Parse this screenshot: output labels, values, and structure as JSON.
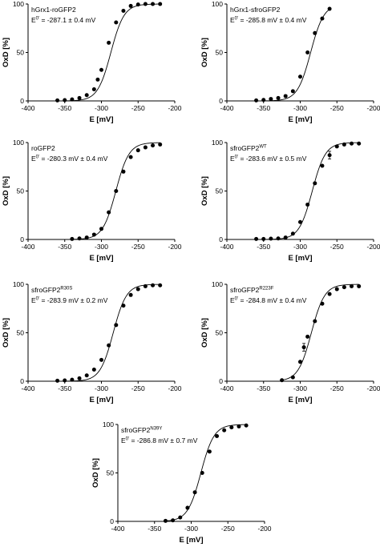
{
  "chart_data": [
    {
      "type": "scatter",
      "title": "hGrx1-roGFP2",
      "annotation": {
        "prefix": "E",
        "superscript": "0'",
        "text": " = -287.1 ± 0.4 mV"
      },
      "xlabel": "E [mV]",
      "ylabel": "OxD [%]",
      "xlim": [
        -400,
        -200
      ],
      "ylim": [
        0,
        100
      ],
      "xticks": [
        -400,
        -350,
        -300,
        -250,
        -200
      ],
      "yticks": [
        0,
        50,
        100
      ],
      "grid": false,
      "midpoint": -287.1,
      "points": [
        {
          "x": -360,
          "y": 0.5
        },
        {
          "x": -350,
          "y": 0.8
        },
        {
          "x": -340,
          "y": 1.5
        },
        {
          "x": -330,
          "y": 3
        },
        {
          "x": -320,
          "y": 6
        },
        {
          "x": -310,
          "y": 12
        },
        {
          "x": -305,
          "y": 22
        },
        {
          "x": -300,
          "y": 32
        },
        {
          "x": -290,
          "y": 60
        },
        {
          "x": -280,
          "y": 81
        },
        {
          "x": -270,
          "y": 93
        },
        {
          "x": -260,
          "y": 98
        },
        {
          "x": -250,
          "y": 99.5
        },
        {
          "x": -240,
          "y": 100
        },
        {
          "x": -230,
          "y": 100
        },
        {
          "x": -220,
          "y": 100
        }
      ]
    },
    {
      "type": "scatter",
      "title": "hGrx1-sfroGFP2",
      "annotation": {
        "prefix": "E",
        "superscript": "0'",
        "text": " = -285.8 mV ± 0.4 mV"
      },
      "xlabel": "E [mV]",
      "ylabel": "OxD [%]",
      "xlim": [
        -400,
        -200
      ],
      "ylim": [
        0,
        100
      ],
      "xticks": [
        -400,
        -350,
        -300,
        -250,
        -200
      ],
      "yticks": [
        0,
        50,
        100
      ],
      "grid": false,
      "midpoint": -285.8,
      "points": [
        {
          "x": -360,
          "y": 0.5
        },
        {
          "x": -350,
          "y": 1
        },
        {
          "x": -340,
          "y": 2
        },
        {
          "x": -330,
          "y": 3
        },
        {
          "x": -320,
          "y": 5
        },
        {
          "x": -310,
          "y": 10
        },
        {
          "x": -300,
          "y": 25
        },
        {
          "x": -290,
          "y": 50
        },
        {
          "x": -280,
          "y": 70
        },
        {
          "x": -270,
          "y": 85
        },
        {
          "x": -260,
          "y": 95
        }
      ]
    },
    {
      "type": "scatter",
      "title": "roGFP2",
      "annotation": {
        "prefix": "E",
        "superscript": "0'",
        "text": " = -280.3 mV ± 0.4 mV"
      },
      "xlabel": "E [mV]",
      "ylabel": "OxD [%]",
      "xlim": [
        -400,
        -200
      ],
      "ylim": [
        0,
        100
      ],
      "xticks": [
        -400,
        -350,
        -300,
        -250,
        -200
      ],
      "yticks": [
        0,
        50,
        100
      ],
      "grid": false,
      "midpoint": -280.3,
      "points": [
        {
          "x": -340,
          "y": 0.5
        },
        {
          "x": -330,
          "y": 1
        },
        {
          "x": -320,
          "y": 2
        },
        {
          "x": -310,
          "y": 5
        },
        {
          "x": -300,
          "y": 11
        },
        {
          "x": -290,
          "y": 28
        },
        {
          "x": -280,
          "y": 50
        },
        {
          "x": -270,
          "y": 70
        },
        {
          "x": -260,
          "y": 85
        },
        {
          "x": -250,
          "y": 92
        },
        {
          "x": -240,
          "y": 95
        },
        {
          "x": -230,
          "y": 97
        },
        {
          "x": -220,
          "y": 98
        }
      ]
    },
    {
      "type": "scatter",
      "title": "sfroGFP2",
      "title_superscript": "WT",
      "annotation": {
        "prefix": "E",
        "superscript": "0'",
        "text": " = -283.6 mV ± 0.5 mV"
      },
      "xlabel": "E [mV]",
      "ylabel": "OxD [%]",
      "xlim": [
        -400,
        -200
      ],
      "ylim": [
        0,
        100
      ],
      "xticks": [
        -400,
        -350,
        -300,
        -250,
        -200
      ],
      "yticks": [
        0,
        50,
        100
      ],
      "grid": false,
      "midpoint": -283.6,
      "points": [
        {
          "x": -360,
          "y": 0.5
        },
        {
          "x": -350,
          "y": 0.5
        },
        {
          "x": -340,
          "y": 0.8
        },
        {
          "x": -330,
          "y": 1
        },
        {
          "x": -320,
          "y": 2
        },
        {
          "x": -310,
          "y": 6
        },
        {
          "x": -300,
          "y": 18
        },
        {
          "x": -290,
          "y": 36
        },
        {
          "x": -280,
          "y": 58
        },
        {
          "x": -270,
          "y": 76
        },
        {
          "x": -260,
          "y": 87,
          "err": 4
        },
        {
          "x": -250,
          "y": 96
        },
        {
          "x": -240,
          "y": 98
        },
        {
          "x": -230,
          "y": 99
        },
        {
          "x": -220,
          "y": 99
        }
      ]
    },
    {
      "type": "scatter",
      "title": "sfroGFP2",
      "title_superscript": "R30S",
      "annotation": {
        "prefix": "E",
        "superscript": "0'",
        "text": " = -283.9 mV ± 0.2 mV"
      },
      "xlabel": "E [mV]",
      "ylabel": "OxD [%]",
      "xlim": [
        -400,
        -200
      ],
      "ylim": [
        0,
        100
      ],
      "xticks": [
        -400,
        -350,
        -300,
        -250,
        -200
      ],
      "yticks": [
        0,
        50,
        100
      ],
      "grid": false,
      "midpoint": -283.9,
      "points": [
        {
          "x": -360,
          "y": 0.5
        },
        {
          "x": -350,
          "y": 0.8
        },
        {
          "x": -340,
          "y": 1.5
        },
        {
          "x": -330,
          "y": 3
        },
        {
          "x": -320,
          "y": 6
        },
        {
          "x": -310,
          "y": 12
        },
        {
          "x": -300,
          "y": 22
        },
        {
          "x": -290,
          "y": 37
        },
        {
          "x": -280,
          "y": 58
        },
        {
          "x": -270,
          "y": 78
        },
        {
          "x": -260,
          "y": 89
        },
        {
          "x": -250,
          "y": 95
        },
        {
          "x": -240,
          "y": 98
        },
        {
          "x": -230,
          "y": 99
        },
        {
          "x": -220,
          "y": 99
        }
      ]
    },
    {
      "type": "scatter",
      "title": "sfroGFP2",
      "title_superscript": "R223F",
      "annotation": {
        "prefix": "E",
        "superscript": "0'",
        "text": " = -284.8 mV ± 0.4 mV"
      },
      "xlabel": "E [mV]",
      "ylabel": "OxD [%]",
      "xlim": [
        -400,
        -200
      ],
      "ylim": [
        0,
        100
      ],
      "xticks": [
        -400,
        -350,
        -300,
        -250,
        -200
      ],
      "yticks": [
        0,
        50,
        100
      ],
      "grid": false,
      "midpoint": -284.8,
      "points": [
        {
          "x": -325,
          "y": 1
        },
        {
          "x": -310,
          "y": 4
        },
        {
          "x": -300,
          "y": 20
        },
        {
          "x": -295,
          "y": 35,
          "err": 4
        },
        {
          "x": -290,
          "y": 46
        },
        {
          "x": -280,
          "y": 62
        },
        {
          "x": -270,
          "y": 80
        },
        {
          "x": -260,
          "y": 90
        },
        {
          "x": -250,
          "y": 95
        },
        {
          "x": -240,
          "y": 97
        },
        {
          "x": -230,
          "y": 98
        },
        {
          "x": -220,
          "y": 98
        }
      ]
    },
    {
      "type": "scatter",
      "title": "sfroGFP2",
      "title_superscript": "N39Y",
      "annotation": {
        "prefix": "E",
        "superscript": "0'",
        "text": " = -286.8 mV ± 0.7 mV"
      },
      "xlabel": "E [mV]",
      "ylabel": "OxD [%]",
      "xlim": [
        -400,
        -200
      ],
      "ylim": [
        0,
        100
      ],
      "xticks": [
        -400,
        -350,
        -300,
        -250,
        -200
      ],
      "yticks": [
        0,
        50,
        100
      ],
      "grid": false,
      "midpoint": -286.8,
      "points": [
        {
          "x": -335,
          "y": 0.5
        },
        {
          "x": -325,
          "y": 1
        },
        {
          "x": -315,
          "y": 4
        },
        {
          "x": -305,
          "y": 14
        },
        {
          "x": -295,
          "y": 30
        },
        {
          "x": -285,
          "y": 50
        },
        {
          "x": -275,
          "y": 72
        },
        {
          "x": -265,
          "y": 88
        },
        {
          "x": -255,
          "y": 94
        },
        {
          "x": -245,
          "y": 97
        },
        {
          "x": -235,
          "y": 98
        },
        {
          "x": -225,
          "y": 99
        }
      ]
    }
  ]
}
